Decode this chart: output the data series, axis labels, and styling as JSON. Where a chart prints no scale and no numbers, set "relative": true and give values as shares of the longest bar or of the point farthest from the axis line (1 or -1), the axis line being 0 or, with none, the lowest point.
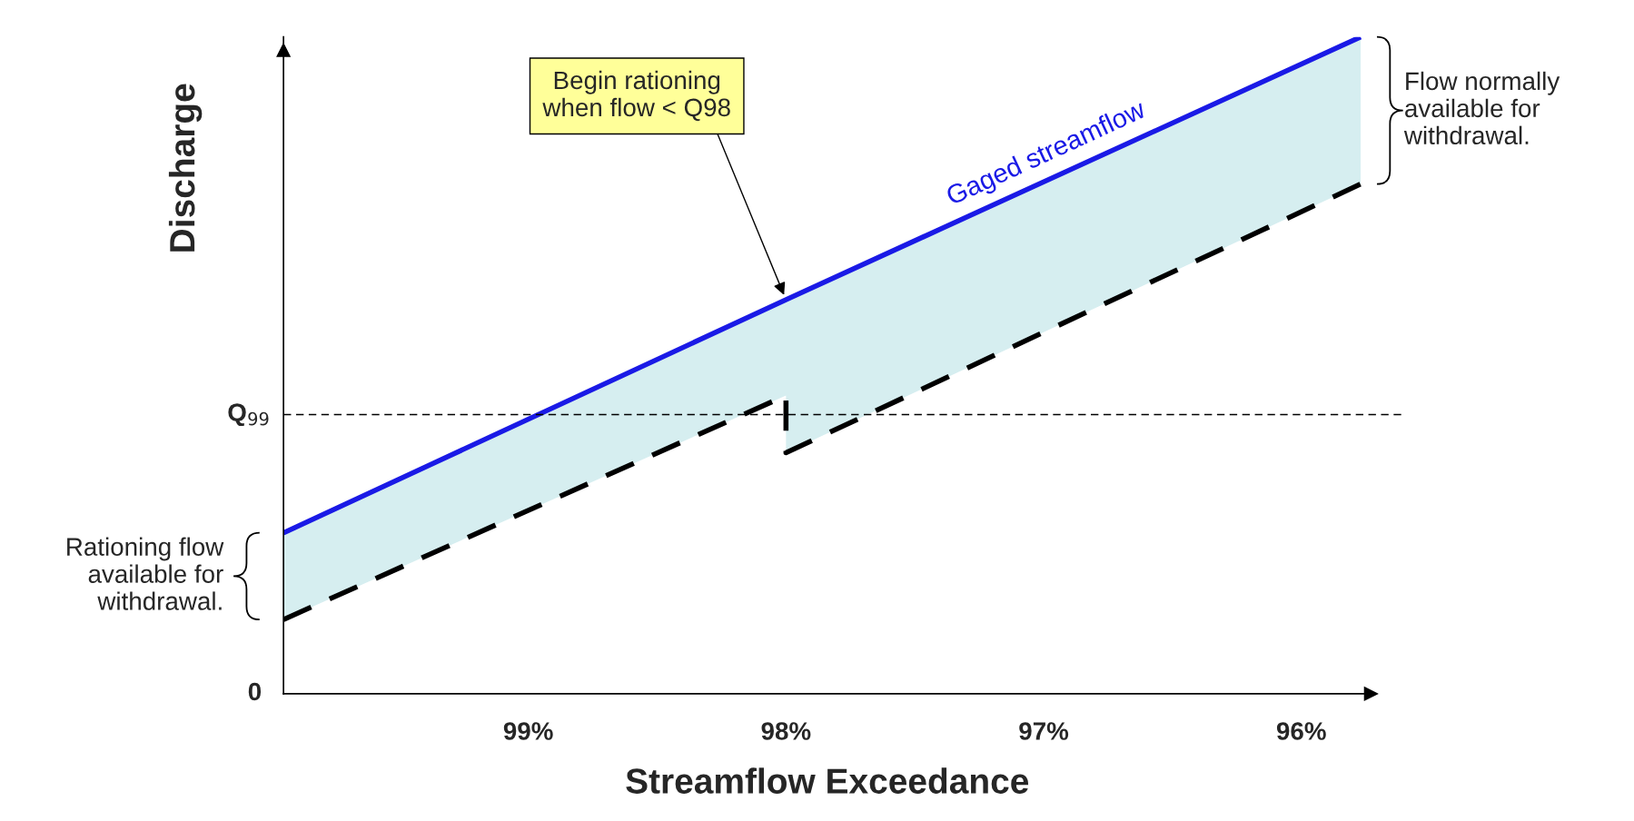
{
  "chart_data": {
    "type": "line",
    "relative": true,
    "xlabel": "Streamflow Exceedance",
    "ylabel": "Discharge",
    "xlim": [
      99.95,
      95.73
    ],
    "xticks": [
      {
        "value": 99,
        "label": "99%"
      },
      {
        "value": 98,
        "label": "98%"
      },
      {
        "value": 97,
        "label": "97%"
      },
      {
        "value": 96,
        "label": "96%"
      }
    ],
    "series": [
      {
        "name": "Gaged streamflow",
        "color": "#1a1ae6",
        "x": [
          99.95,
          98.0,
          98.0,
          95.77
        ],
        "values": [
          0.245,
          0.6,
          0.6,
          1.0
        ],
        "lower": [
          0.113,
          0.454,
          0.367,
          0.776
        ],
        "upper": [
          0.245,
          0.6,
          0.6,
          1.0
        ],
        "line_style": "solid"
      },
      {
        "color": "#000000",
        "x": [
          99.95,
          98.0,
          98.0,
          95.77
        ],
        "values": [
          0.113,
          0.454,
          0.367,
          0.776
        ],
        "line_style": "dashed"
      }
    ],
    "ref_lines": [
      {
        "axis": "y",
        "value": 0.425,
        "label": "Q$_{99}$",
        "color": "#000000",
        "line_style": "dashed"
      }
    ],
    "annotations": [
      "Begin rationing\nwhen flow < Q98",
      {
        "text": "Flow normally\navailable for\nwithdrawal.",
        "x": 95.77,
        "y": 0.888
      },
      {
        "text": "Rationing flow\navailable for\nwithdrawal.",
        "x": 99.95,
        "y": 0.179
      },
      "0"
    ],
    "legend": false,
    "grid": false,
    "marker": "none"
  }
}
